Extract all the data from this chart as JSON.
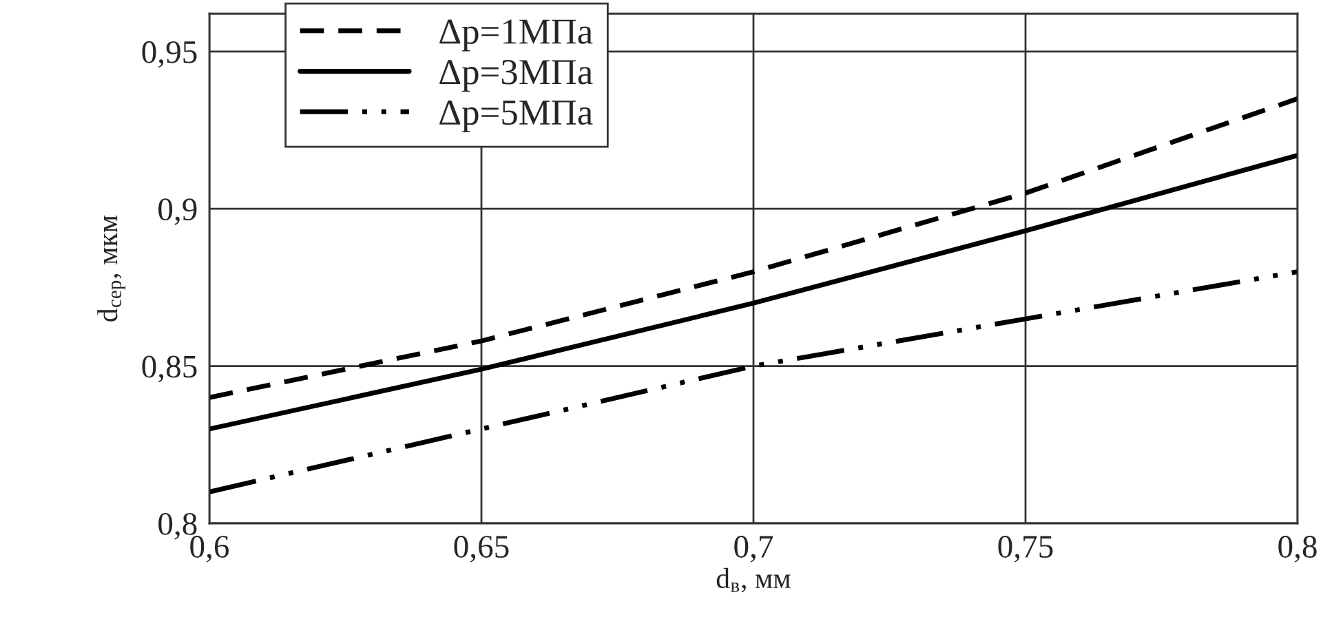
{
  "chart_data": {
    "type": "line",
    "xlabel": "d$_{в}$, мм",
    "ylabel": "d$_{сер}$, мкм",
    "x": [
      0.6,
      0.65,
      0.7,
      0.75,
      0.8
    ],
    "series": [
      {
        "name": "Δp=1МПа",
        "color": "#000000",
        "line_style": "dashed",
        "values": [
          0.84,
          0.858,
          0.88,
          0.905,
          0.935
        ]
      },
      {
        "name": "Δp=3МПа",
        "color": "#000000",
        "line_style": "solid",
        "values": [
          0.83,
          0.849,
          0.87,
          0.893,
          0.917
        ]
      },
      {
        "name": "Δp=5МПа",
        "color": "#000000",
        "line_style": "dashdotdot",
        "values": [
          0.81,
          0.83,
          0.85,
          0.865,
          0.88
        ]
      }
    ],
    "xlim": [
      0.6,
      0.8
    ],
    "ylim": [
      0.8,
      0.962
    ],
    "xticks": [
      {
        "value": 0.6,
        "label": "0,6"
      },
      {
        "value": 0.65,
        "label": "0,65"
      },
      {
        "value": 0.7,
        "label": "0,7"
      },
      {
        "value": 0.75,
        "label": "0,75"
      },
      {
        "value": 0.8,
        "label": "0,8"
      }
    ],
    "yticks": [
      {
        "value": 0.8,
        "label": "0,8"
      },
      {
        "value": 0.85,
        "label": "0,85"
      },
      {
        "value": 0.9,
        "label": "0,9"
      },
      {
        "value": 0.95,
        "label": "0,95"
      }
    ],
    "grid": true,
    "legend": "top left",
    "marker": "none"
  }
}
